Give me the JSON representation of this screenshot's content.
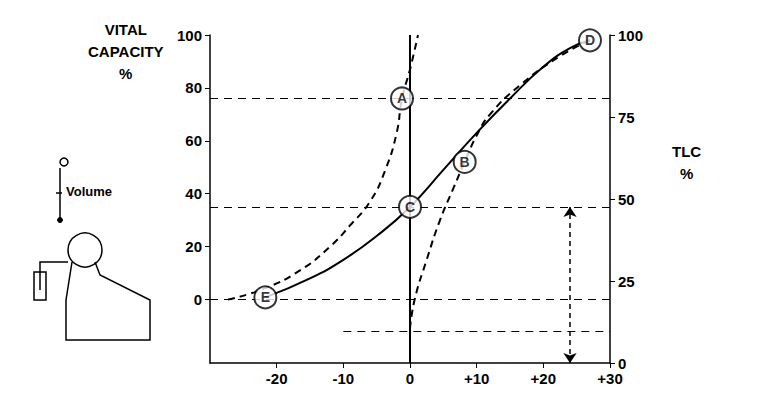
{
  "chart_data": {
    "type": "line",
    "y_label": "VITAL CAPACITY %",
    "y2_label": "TLC %",
    "figure_label": "Volume",
    "xlim": [
      -30,
      30
    ],
    "xticks": [
      -20,
      -10,
      0,
      {
        "value": 10,
        "label": "+10"
      },
      {
        "value": 20,
        "label": "+20"
      },
      {
        "value": 30,
        "label": "+30"
      }
    ],
    "ylim": [
      -24,
      100
    ],
    "yticks": [
      0,
      20,
      40,
      60,
      80,
      100
    ],
    "y2lim": [
      0,
      100
    ],
    "y2ticks": [
      0,
      25,
      50,
      75,
      100
    ],
    "grid": false,
    "series": [
      {
        "type": "line",
        "line_style": "solid",
        "color": "#000000",
        "values": [
          [
            -21.7,
            0.8
          ],
          [
            -15,
            8
          ],
          [
            -10,
            15
          ],
          [
            -5,
            24
          ],
          [
            0,
            35
          ],
          [
            5,
            49
          ],
          [
            10,
            63
          ],
          [
            15,
            76
          ],
          [
            20,
            88
          ],
          [
            24,
            95
          ],
          [
            27,
            98
          ]
        ]
      },
      {
        "type": "line",
        "line_style": "dashed",
        "color": "#000000",
        "values": [
          [
            -27.3,
            0
          ],
          [
            -22,
            4
          ],
          [
            -16.5,
            11
          ],
          [
            -12,
            20
          ],
          [
            -9,
            28
          ],
          [
            -6,
            37
          ],
          [
            -3.7,
            49
          ],
          [
            -2,
            63
          ],
          [
            -1.2,
            76
          ],
          [
            0,
            87
          ],
          [
            1.2,
            100
          ]
        ]
      },
      {
        "type": "line",
        "line_style": "dashed",
        "color": "#000000",
        "values": [
          [
            0,
            -11
          ],
          [
            0.7,
            0
          ],
          [
            2.5,
            15
          ],
          [
            4.5,
            30
          ],
          [
            6.5,
            42
          ],
          [
            8.2,
            52
          ],
          [
            10,
            62
          ],
          [
            12,
            70
          ],
          [
            16.5,
            81
          ],
          [
            22.5,
            92
          ],
          [
            27,
            98
          ]
        ]
      }
    ],
    "points": [
      {
        "label": "A",
        "x": -1.2,
        "y": 76
      },
      {
        "label": "B",
        "x": 8.2,
        "y": 52
      },
      {
        "label": "C",
        "x": 0,
        "y": 35
      },
      {
        "label": "D",
        "x": 27,
        "y": 98
      },
      {
        "label": "E",
        "x": -21.7,
        "y": 0.8
      }
    ],
    "hlines": [
      {
        "y": 76
      },
      {
        "y": 35
      },
      {
        "y": 0
      },
      {
        "y": -12,
        "x_from": -10
      }
    ],
    "vlines": [
      0
    ],
    "arrow": {
      "x": 24,
      "from": -24,
      "to": 35
    }
  }
}
